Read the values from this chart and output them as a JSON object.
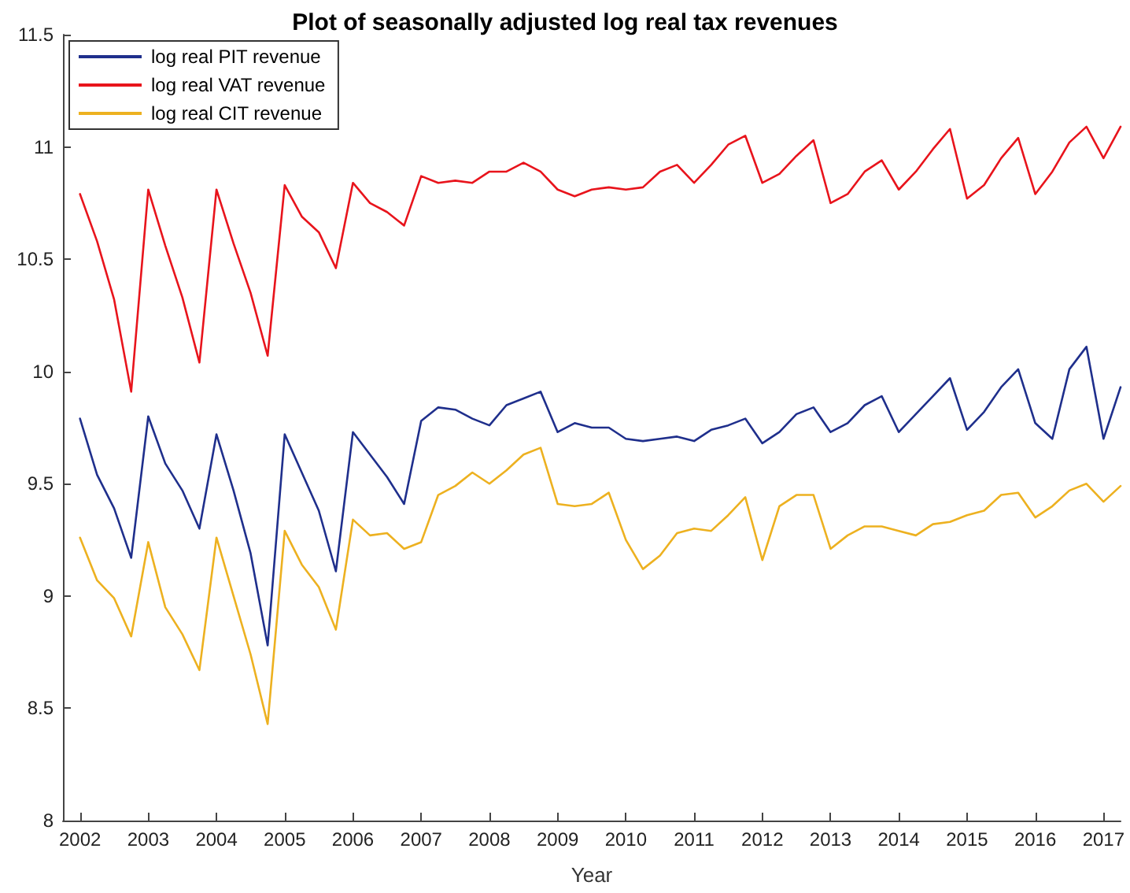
{
  "chart_data": {
    "type": "line",
    "title": "Plot of seasonally adjusted log real tax revenues",
    "xlabel": "Year",
    "x": [
      2002,
      2002.25,
      2002.5,
      2002.75,
      2003,
      2003.25,
      2003.5,
      2003.75,
      2004,
      2004.25,
      2004.5,
      2004.75,
      2005,
      2005.25,
      2005.5,
      2005.75,
      2006,
      2006.25,
      2006.5,
      2006.75,
      2007,
      2007.25,
      2007.5,
      2007.75,
      2008,
      2008.25,
      2008.5,
      2008.75,
      2009,
      2009.25,
      2009.5,
      2009.75,
      2010,
      2010.25,
      2010.5,
      2010.75,
      2011,
      2011.25,
      2011.5,
      2011.75,
      2012,
      2012.25,
      2012.5,
      2012.75,
      2013,
      2013.25,
      2013.5,
      2013.75,
      2014,
      2014.25,
      2014.5,
      2014.75,
      2015,
      2015.25,
      2015.5,
      2015.75,
      2016,
      2016.25,
      2016.5,
      2016.75,
      2017,
      2017.25
    ],
    "series": [
      {
        "name": "log real PIT revenue",
        "color": "#1f2f8c",
        "values": [
          9.79,
          9.54,
          9.39,
          9.17,
          9.8,
          9.59,
          9.47,
          9.3,
          9.72,
          9.47,
          9.19,
          8.78,
          9.72,
          9.55,
          9.38,
          9.11,
          9.73,
          9.63,
          9.53,
          9.41,
          9.78,
          9.84,
          9.83,
          9.79,
          9.76,
          9.85,
          9.88,
          9.91,
          9.73,
          9.77,
          9.75,
          9.75,
          9.7,
          9.69,
          9.7,
          9.71,
          9.69,
          9.74,
          9.76,
          9.79,
          9.68,
          9.73,
          9.81,
          9.84,
          9.73,
          9.77,
          9.85,
          9.89,
          9.73,
          9.81,
          9.89,
          9.97,
          9.74,
          9.82,
          9.93,
          10.01,
          9.77,
          9.7,
          10.01,
          10.11,
          9.7,
          9.93
        ]
      },
      {
        "name": "log real VAT revenue",
        "color": "#e8141c",
        "values": [
          10.79,
          10.58,
          10.32,
          9.91,
          10.81,
          10.56,
          10.33,
          10.04,
          10.81,
          10.57,
          10.35,
          10.07,
          10.83,
          10.69,
          10.62,
          10.46,
          10.84,
          10.75,
          10.71,
          10.65,
          10.87,
          10.84,
          10.85,
          10.84,
          10.89,
          10.89,
          10.93,
          10.89,
          10.81,
          10.78,
          10.81,
          10.82,
          10.81,
          10.82,
          10.89,
          10.92,
          10.84,
          10.92,
          11.01,
          11.05,
          10.84,
          10.88,
          10.96,
          11.03,
          10.75,
          10.79,
          10.89,
          10.94,
          10.81,
          10.89,
          10.99,
          11.08,
          10.77,
          10.83,
          10.95,
          11.04,
          10.79,
          10.89,
          11.02,
          11.09,
          10.95,
          11.09
        ]
      },
      {
        "name": "log real CIT revenue",
        "color": "#edb120",
        "values": [
          9.26,
          9.07,
          8.99,
          8.82,
          9.24,
          8.95,
          8.83,
          8.67,
          9.26,
          9.0,
          8.74,
          8.43,
          9.29,
          9.14,
          9.04,
          8.85,
          9.34,
          9.27,
          9.28,
          9.21,
          9.24,
          9.45,
          9.49,
          9.55,
          9.5,
          9.56,
          9.63,
          9.66,
          9.41,
          9.4,
          9.41,
          9.46,
          9.25,
          9.12,
          9.18,
          9.28,
          9.3,
          9.29,
          9.36,
          9.44,
          9.16,
          9.4,
          9.45,
          9.45,
          9.21,
          9.27,
          9.31,
          9.31,
          9.29,
          9.27,
          9.32,
          9.33,
          9.36,
          9.38,
          9.45,
          9.46,
          9.35,
          9.4,
          9.47,
          9.5,
          9.42,
          9.49
        ]
      }
    ],
    "xlim": [
      2001.75,
      2017.25
    ],
    "xticks": [
      2002,
      2003,
      2004,
      2005,
      2006,
      2007,
      2008,
      2009,
      2010,
      2011,
      2012,
      2013,
      2014,
      2015,
      2016,
      2017
    ],
    "ylim": [
      8,
      11.5
    ],
    "yticks": [
      8,
      8.5,
      9,
      9.5,
      10,
      10.5,
      11,
      11.5
    ],
    "grid": false,
    "legend": "top left",
    "marker": "none",
    "line_style": "solid"
  }
}
